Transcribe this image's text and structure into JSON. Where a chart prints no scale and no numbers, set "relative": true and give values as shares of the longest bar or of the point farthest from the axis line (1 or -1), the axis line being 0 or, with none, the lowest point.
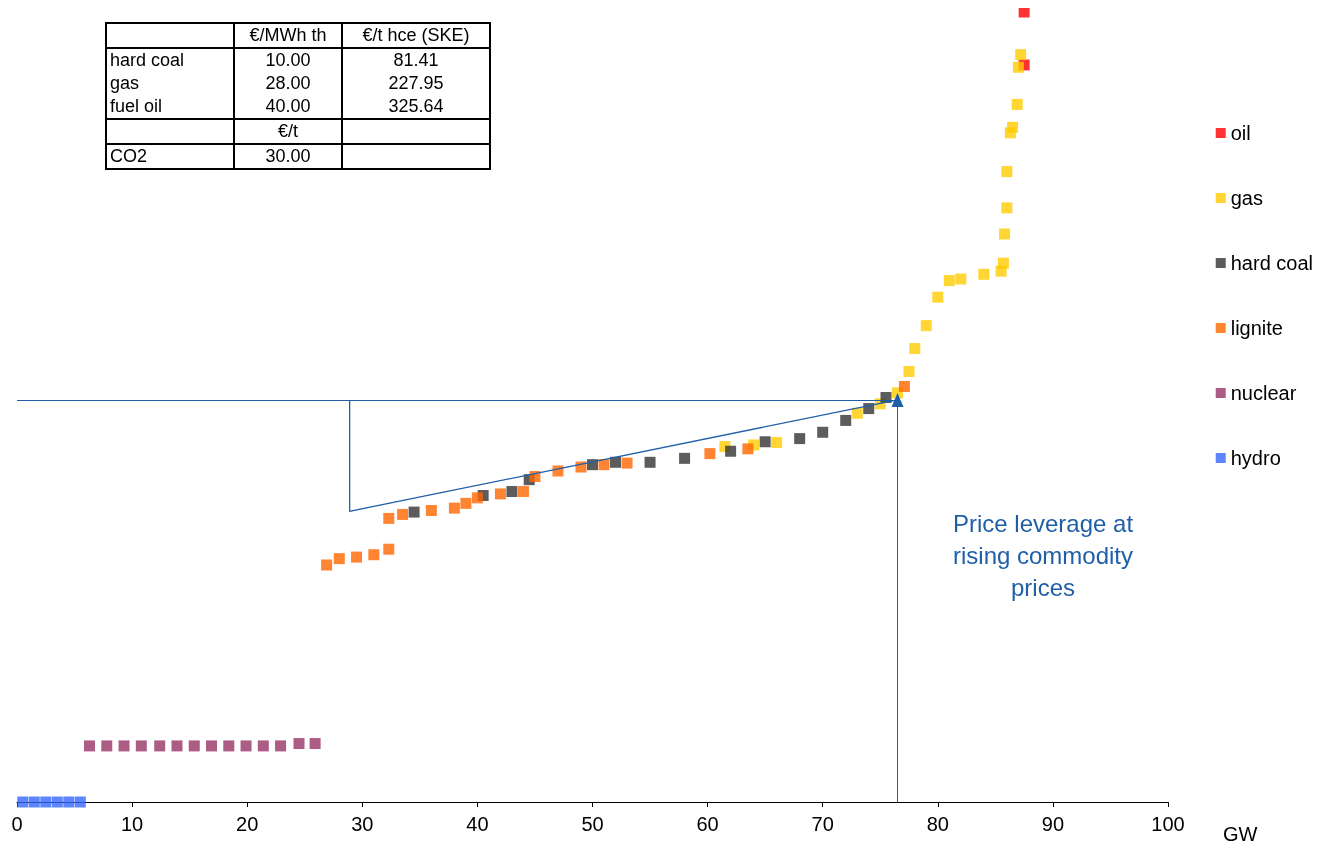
{
  "chart_data": {
    "type": "scatter",
    "relative": true,
    "xlabel": "GW",
    "xlim": [
      0,
      100
    ],
    "xticks": [
      0,
      10,
      20,
      30,
      40,
      50,
      60,
      70,
      80,
      90,
      100
    ],
    "marker": "square",
    "legend": "right",
    "grid": false,
    "annotations": [
      "€/MWh th",
      "€/t hce (SKE)",
      "hard coal",
      "10.00",
      "81.41",
      "gas",
      "28.00",
      "227.95",
      "fuel oil",
      "40.00",
      "325.64",
      "€/t",
      "CO2",
      "30.00",
      "Price leverage at rising commodity prices"
    ],
    "ref_lines": [
      {
        "axis": "y",
        "value": 0.509,
        "color": "#1f5fa8"
      },
      {
        "axis": "x",
        "value": 76.5,
        "color": "#1f5fa8"
      }
    ],
    "series": [
      {
        "name": "oil",
        "color": "#ff0000",
        "x": [
          87.5,
          87.5
        ],
        "values": [
          0.933,
          1.0
        ]
      },
      {
        "name": "gas",
        "color": "#ffcc00",
        "x": [
          61.5,
          64,
          66,
          73,
          75,
          76.5,
          77.5,
          78,
          79,
          80,
          81,
          82,
          84,
          85.5,
          85.7,
          85.8,
          86,
          86,
          86.3,
          86.5,
          86.9,
          87.0,
          87.2
        ],
        "values": [
          0.45,
          0.452,
          0.455,
          0.492,
          0.504,
          0.518,
          0.545,
          0.574,
          0.603,
          0.639,
          0.66,
          0.662,
          0.668,
          0.672,
          0.682,
          0.719,
          0.752,
          0.798,
          0.847,
          0.854,
          0.883,
          0.93,
          0.946
        ]
      },
      {
        "name": "hard coal",
        "color": "#333333",
        "x": [
          34.5,
          40.5,
          43,
          44.5,
          50,
          52,
          55,
          58,
          62,
          65,
          68,
          70,
          72,
          74,
          75.5
        ],
        "values": [
          0.367,
          0.388,
          0.393,
          0.408,
          0.427,
          0.43,
          0.43,
          0.435,
          0.444,
          0.456,
          0.46,
          0.468,
          0.483,
          0.498,
          0.512
        ]
      },
      {
        "name": "lignite",
        "color": "#ff6600",
        "x": [
          26.9,
          28,
          29.5,
          31,
          32.3,
          32.3,
          33.5,
          36,
          38,
          39,
          40,
          42,
          44,
          45,
          47,
          49,
          51,
          53,
          60.2,
          63.5,
          77.1
        ],
        "values": [
          0.3,
          0.308,
          0.31,
          0.313,
          0.32,
          0.359,
          0.364,
          0.369,
          0.372,
          0.378,
          0.385,
          0.39,
          0.393,
          0.412,
          0.419,
          0.424,
          0.427,
          0.429,
          0.441,
          0.447,
          0.526
        ]
      },
      {
        "name": "nuclear",
        "color": "#993366",
        "x": [
          6.3,
          7.8,
          9.3,
          10.8,
          12.4,
          13.9,
          15.4,
          16.9,
          18.4,
          19.9,
          21.4,
          22.9,
          24.5,
          25.9
        ],
        "values": [
          0.071,
          0.071,
          0.071,
          0.071,
          0.071,
          0.071,
          0.071,
          0.071,
          0.071,
          0.071,
          0.071,
          0.071,
          0.074,
          0.074
        ]
      },
      {
        "name": "hydro",
        "color": "#3366ff",
        "x": [
          0.5,
          1.5,
          2.5,
          3.5,
          4.5,
          5.5
        ],
        "values": [
          0,
          0,
          0,
          0,
          0,
          0
        ]
      },
      {
        "type": "line",
        "color": "#1f5fa8",
        "marker": "none",
        "x": [
          28.9,
          28.9,
          76.5
        ],
        "values": [
          0.509,
          0.368,
          0.509
        ]
      }
    ]
  }
}
